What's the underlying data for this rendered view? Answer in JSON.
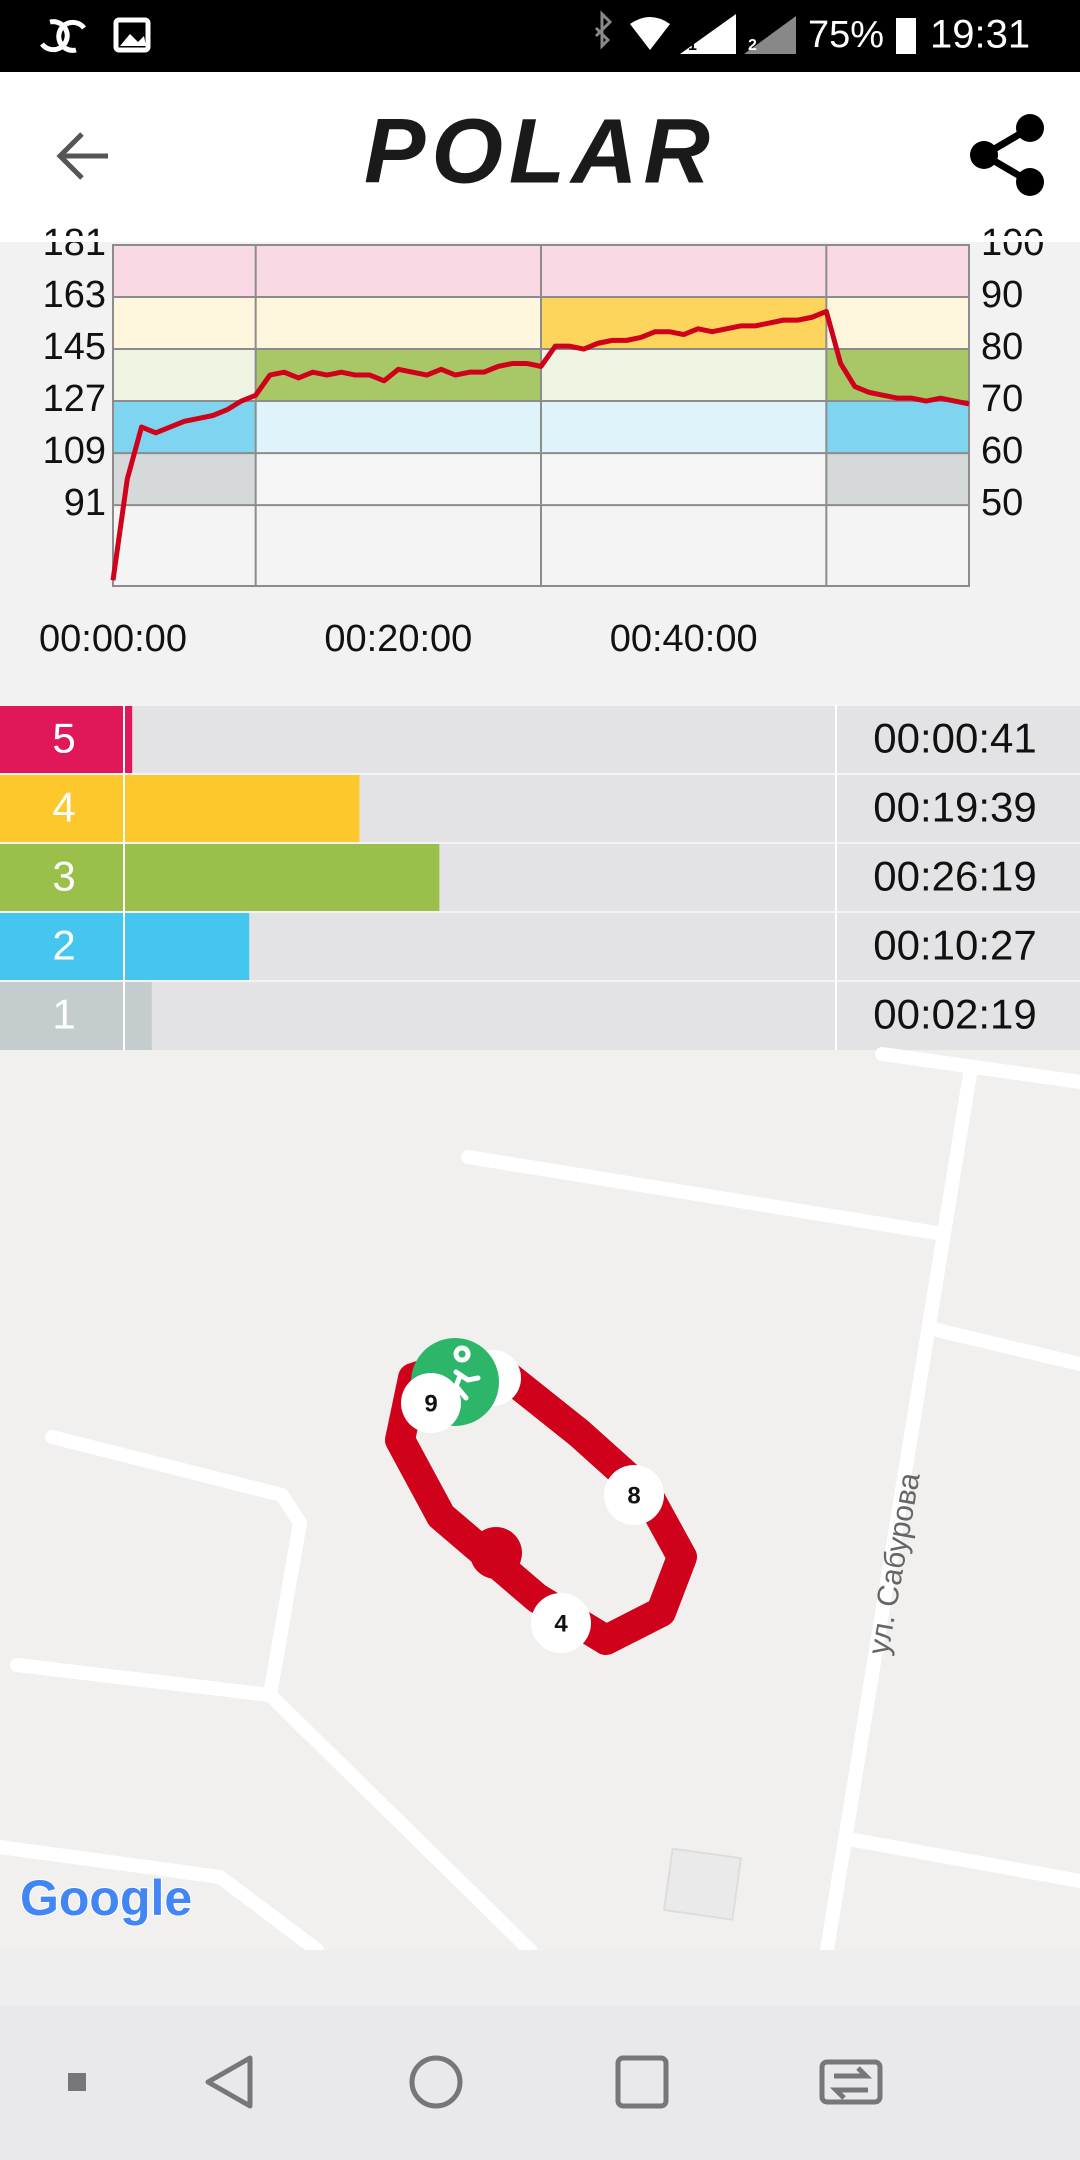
{
  "status_bar": {
    "sim1": "1",
    "sim2": "2",
    "battery": "75%",
    "time": "19:31"
  },
  "header": {
    "logo": "POLAR"
  },
  "hr_chart": {
    "ylim": [
      63,
      181
    ],
    "left_ticks": [
      91,
      109,
      127,
      145,
      163,
      181
    ],
    "y2lim": [
      34.4,
      100
    ],
    "right_ticks": [
      50,
      60,
      70,
      80,
      90,
      100
    ],
    "xlim": [
      0,
      60
    ],
    "x_ticks": [
      {
        "value": 0,
        "label": "00:00:00"
      },
      {
        "value": 20,
        "label": "00:20:00"
      },
      {
        "value": 40,
        "label": "00:40:00"
      }
    ],
    "line": {
      "color": "#d0021b",
      "x": [
        0,
        1,
        2,
        3,
        4,
        5,
        6,
        7,
        8,
        9,
        10,
        11,
        12,
        13,
        14,
        15,
        16,
        17,
        18,
        19,
        20,
        21,
        22,
        23,
        24,
        25,
        26,
        27,
        28,
        29,
        30,
        31,
        32,
        33,
        34,
        35,
        36,
        37,
        38,
        39,
        40,
        41,
        42,
        43,
        44,
        45,
        46,
        47,
        48,
        49,
        50,
        51,
        52,
        53,
        54,
        55,
        56,
        57,
        58,
        59,
        60
      ],
      "values": [
        65,
        100,
        118,
        116,
        118,
        120,
        121,
        122,
        124,
        127,
        129,
        136,
        137,
        135,
        137,
        136,
        137,
        136,
        136,
        134,
        138,
        137,
        136,
        138,
        136,
        137,
        137,
        139,
        140,
        140,
        139,
        146,
        146,
        145,
        147,
        148,
        148,
        149,
        151,
        151,
        150,
        152,
        151,
        152,
        153,
        153,
        154,
        155,
        155,
        156,
        158,
        140,
        132,
        130,
        129,
        128,
        128,
        127,
        128,
        127,
        126
      ]
    }
  },
  "zones": [
    {
      "zone": 5,
      "time": "00:00:41",
      "color": "#e0185a"
    },
    {
      "zone": 4,
      "time": "00:19:39",
      "color": "#fdc82c"
    },
    {
      "zone": 3,
      "time": "00:26:19",
      "color": "#9abf4a"
    },
    {
      "zone": 2,
      "time": "00:10:27",
      "color": "#45c6ee"
    },
    {
      "zone": 1,
      "time": "00:02:19",
      "color": "#c5cccd"
    }
  ],
  "map": {
    "street": "ул. Сабурова",
    "markers": [
      9,
      8,
      4
    ],
    "attribution": "Google"
  }
}
